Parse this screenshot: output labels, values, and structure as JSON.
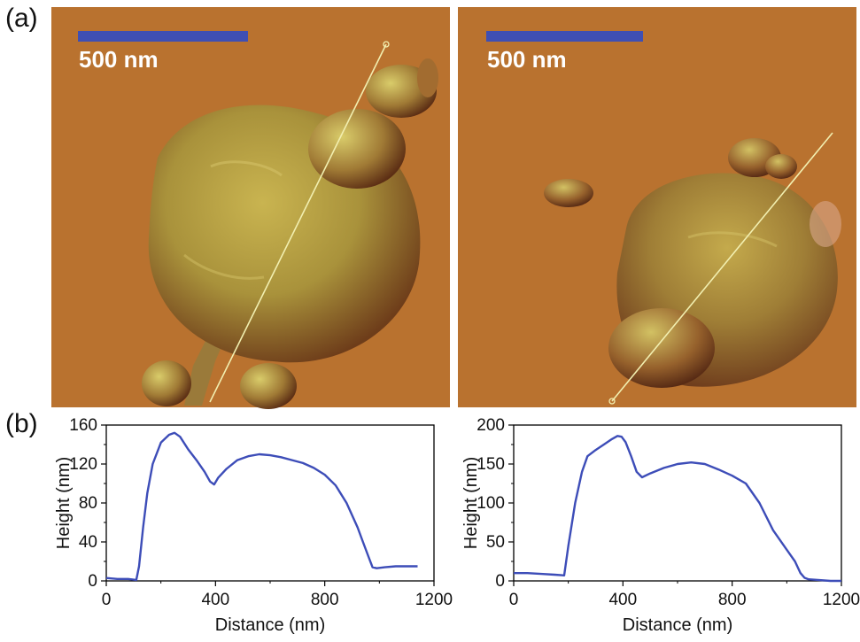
{
  "labels": {
    "a": "(a)",
    "b": "(b)"
  },
  "scale_bar": {
    "label": "500 nm",
    "color": "#3f4fb3"
  },
  "colors": {
    "substrate": "#b9722f",
    "profile_line": "#3d4db8",
    "trace_line": "#f2efb0"
  },
  "chart_data": [
    {
      "type": "line",
      "xlabel": "Distance (nm)",
      "ylabel": "Height (nm)",
      "xlim": [
        0,
        1200
      ],
      "ylim": [
        0,
        160
      ],
      "xticks": [
        0,
        400,
        800,
        1200
      ],
      "yticks": [
        0,
        40,
        80,
        120,
        160
      ],
      "grid": false,
      "series": [
        {
          "x": [
            0,
            40,
            80,
            110,
            120,
            135,
            150,
            170,
            200,
            230,
            250,
            270,
            300,
            330,
            360,
            380,
            395,
            410,
            440,
            480,
            520,
            560,
            600,
            640,
            680,
            720,
            760,
            800,
            840,
            880,
            920,
            940,
            960,
            975,
            990,
            1020,
            1060,
            1100,
            1140
          ],
          "y": [
            3,
            2,
            2,
            1,
            15,
            55,
            90,
            120,
            142,
            150,
            152,
            148,
            135,
            124,
            112,
            102,
            99,
            106,
            115,
            124,
            128,
            130,
            129,
            127,
            124,
            121,
            116,
            109,
            98,
            80,
            55,
            40,
            25,
            14,
            13,
            14,
            15,
            15,
            15
          ]
        }
      ]
    },
    {
      "type": "line",
      "xlabel": "Distance (nm)",
      "ylabel": "Height (nm)",
      "xlim": [
        0,
        1200
      ],
      "ylim": [
        0,
        200
      ],
      "xticks": [
        0,
        400,
        800,
        1200
      ],
      "yticks": [
        0,
        50,
        100,
        150,
        200
      ],
      "grid": false,
      "series": [
        {
          "x": [
            0,
            50,
            100,
            150,
            185,
            200,
            225,
            250,
            270,
            300,
            330,
            360,
            380,
            395,
            410,
            430,
            450,
            470,
            500,
            550,
            600,
            650,
            700,
            750,
            800,
            850,
            900,
            950,
            1000,
            1030,
            1050,
            1065,
            1080,
            1120,
            1160,
            1200
          ],
          "y": [
            10,
            10,
            9,
            8,
            7,
            45,
            100,
            140,
            160,
            168,
            175,
            182,
            186,
            185,
            178,
            160,
            140,
            133,
            138,
            145,
            150,
            152,
            150,
            143,
            135,
            125,
            100,
            65,
            40,
            25,
            10,
            4,
            2,
            1,
            0,
            0
          ]
        }
      ]
    }
  ]
}
